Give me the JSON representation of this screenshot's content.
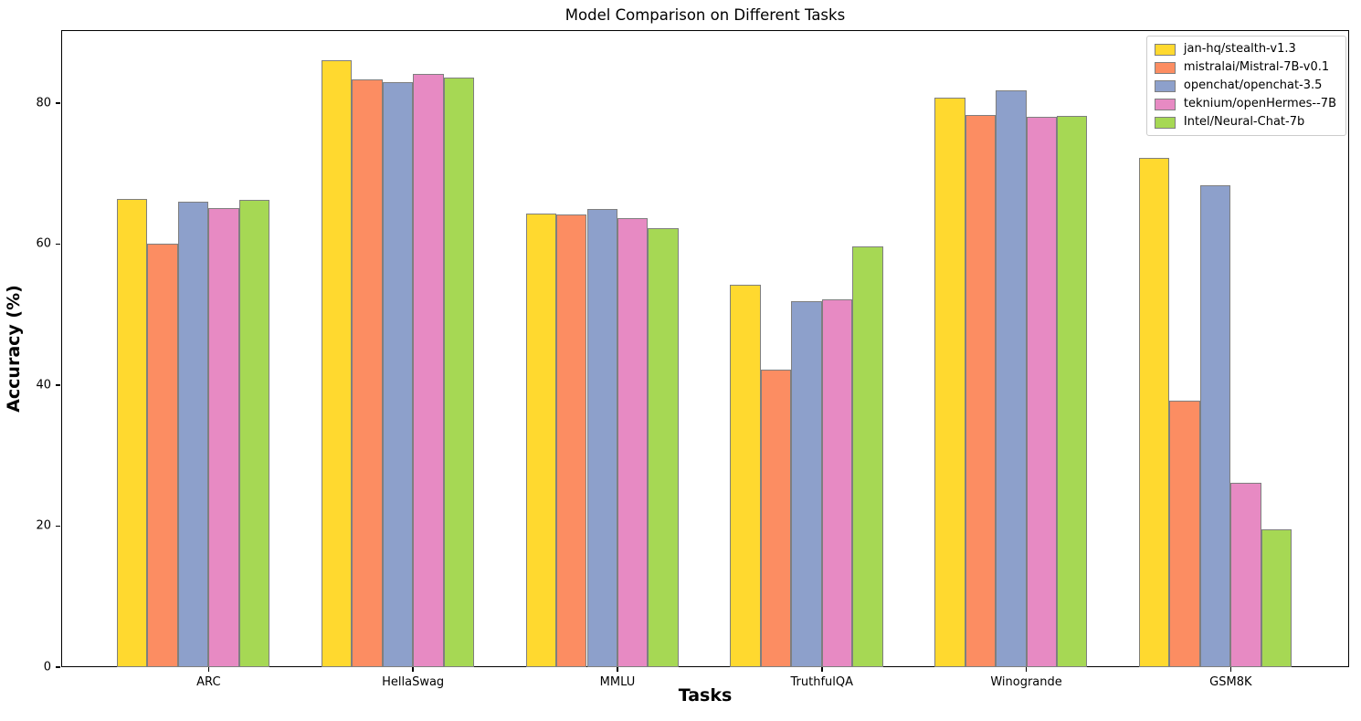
{
  "chart_data": {
    "type": "bar",
    "title": "Model Comparison on Different Tasks",
    "xlabel": "Tasks",
    "ylabel": "Accuracy (%)",
    "categories": [
      "ARC",
      "HellaSwag",
      "MMLU",
      "TruthfulQA",
      "Winogrande",
      "GSM8K"
    ],
    "series": [
      {
        "name": "jan-hq/stealth-v1.3",
        "color": "#FFD92F",
        "values": [
          66.4,
          86.1,
          64.3,
          54.2,
          80.8,
          72.2
        ]
      },
      {
        "name": "mistralai/Mistral-7B-v0.1",
        "color": "#FC8D62",
        "values": [
          60.0,
          83.3,
          64.2,
          42.2,
          78.3,
          37.8
        ]
      },
      {
        "name": "openchat/openchat-3.5",
        "color": "#8DA0CB",
        "values": [
          66.0,
          83.0,
          65.0,
          51.9,
          81.8,
          68.3
        ]
      },
      {
        "name": "teknium/openHermes--7B",
        "color": "#E78AC3",
        "values": [
          65.1,
          84.2,
          63.7,
          52.2,
          78.0,
          26.1
        ]
      },
      {
        "name": "Intel/Neural-Chat-7b",
        "color": "#A6D854",
        "values": [
          66.3,
          83.6,
          62.3,
          59.7,
          78.2,
          19.5
        ]
      }
    ],
    "yticks": [
      0,
      20,
      40,
      60,
      80
    ],
    "ylim": [
      0,
      90.35
    ],
    "grid": false,
    "legend_position": "upper right",
    "bar_edge_color": "#7f7f7f"
  }
}
